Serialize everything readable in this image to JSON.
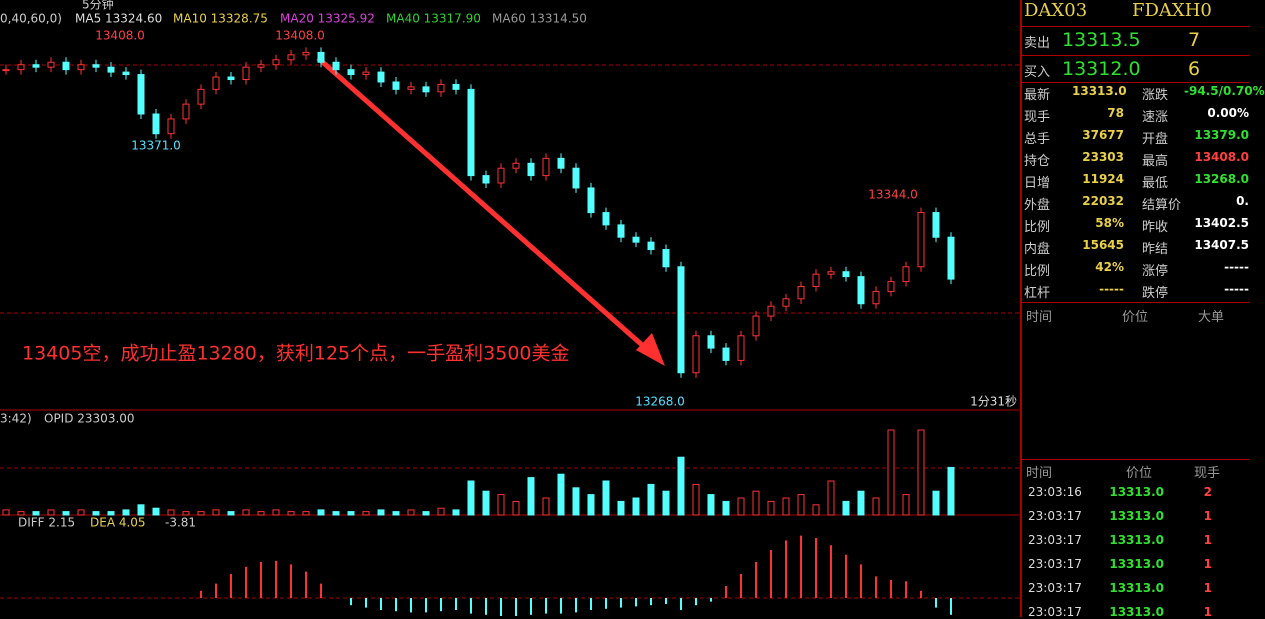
{
  "header": {
    "params": "0,40,60,0)",
    "period": "5分钟",
    "ma": [
      {
        "label": "MA5 13324.60"
      },
      {
        "label": "MA10 13328.75"
      },
      {
        "label": "MA20 13325.92"
      },
      {
        "label": "MA40 13317.90"
      },
      {
        "label": "MA60 13314.50"
      }
    ]
  },
  "price": {
    "high": {
      "value": 13408,
      "label": "13408.0"
    },
    "high2": "13408.0",
    "low_left": "13371.0",
    "low": {
      "value": 13268,
      "label": "13268.0"
    },
    "peak": "13344.0",
    "note": "13405空，成功止盈13280，获利125个点，一手盈利3500美金",
    "timer": "1分31秒",
    "closes": [
      13398,
      13400,
      13399,
      13401,
      13398,
      13400,
      13399,
      13397,
      13396,
      13380,
      13372,
      13378,
      13384,
      13390,
      13395,
      13394,
      13399,
      13400,
      13402,
      13404,
      13405,
      13401,
      13398,
      13396,
      13397,
      13393,
      13390,
      13391,
      13389,
      13392,
      13390,
      13355,
      13352,
      13358,
      13360,
      13355,
      13362,
      13358,
      13350,
      13340,
      13335,
      13330,
      13328,
      13325,
      13318,
      13275,
      13290,
      13285,
      13280,
      13290,
      13298,
      13302,
      13305,
      13310,
      13315,
      13316,
      13314,
      13303,
      13308,
      13312,
      13318,
      13340,
      13330,
      13313
    ]
  },
  "volume": {
    "label1": "3:42)",
    "label2": "OPID 23303.00",
    "values": [
      3,
      2,
      2,
      3,
      2,
      3,
      2,
      2,
      3,
      6,
      4,
      3,
      2,
      2,
      3,
      2,
      3,
      2,
      3,
      2,
      2,
      3,
      2,
      2,
      2,
      3,
      2,
      3,
      2,
      4,
      3,
      20,
      14,
      12,
      8,
      22,
      10,
      24,
      16,
      12,
      20,
      8,
      10,
      18,
      14,
      34,
      18,
      12,
      8,
      10,
      14,
      8,
      10,
      12,
      6,
      20,
      8,
      14,
      10,
      50,
      12,
      50,
      14,
      28
    ]
  },
  "macd": {
    "diff": "DIFF 2.15",
    "dea": "DEA 4.05",
    "hist": "-3.81",
    "values": [
      0,
      0,
      0,
      0,
      0,
      0,
      0,
      0,
      0,
      0,
      0,
      0,
      0,
      0.6,
      1.2,
      2,
      2.6,
      3,
      3.1,
      2.8,
      2.2,
      1.2,
      0,
      -0.6,
      -0.8,
      -1,
      -1.1,
      -1.2,
      -1.2,
      -1.1,
      -1,
      -1.3,
      -1.4,
      -1.5,
      -1.5,
      -1.4,
      -1.3,
      -1.3,
      -1.2,
      -1,
      -0.9,
      -0.8,
      -0.7,
      -0.6,
      -0.5,
      -1,
      -0.6,
      -0.3,
      1,
      2,
      3,
      4,
      4.8,
      5.2,
      5,
      4.4,
      3.6,
      2.8,
      1.8,
      1.5,
      1.4,
      0.6,
      -0.8,
      -1.4
    ]
  },
  "quote": {
    "symbol": "DAX03",
    "code": "FDAXH0",
    "sell": {
      "label": "卖出",
      "price": "13313.5",
      "qty": "7"
    },
    "buy": {
      "label": "买入",
      "price": "13312.0",
      "qty": "6"
    },
    "stats": [
      [
        "最新",
        "13313.0",
        "涨跌",
        "-94.5/0.70%"
      ],
      [
        "现手",
        "78",
        "速涨",
        "0.00%"
      ],
      [
        "总手",
        "37677",
        "开盘",
        "13379.0"
      ],
      [
        "持仓",
        "23303",
        "最高",
        "13408.0"
      ],
      [
        "日增",
        "11924",
        "最低",
        "13268.0"
      ],
      [
        "外盘",
        "22032",
        "结算价",
        "0."
      ],
      [
        "比例",
        "58%",
        "昨收",
        "13402.5"
      ],
      [
        "内盘",
        "15645",
        "昨结",
        "13407.5"
      ],
      [
        "比例",
        "42%",
        "涨停",
        "-----"
      ],
      [
        "杠杆",
        "-----",
        "跌停",
        "-----"
      ]
    ],
    "big_header": [
      "时间",
      "价位",
      "大单"
    ]
  },
  "trades": {
    "header": [
      "时间",
      "价位",
      "现手"
    ],
    "rows": [
      [
        "23:03:16",
        "13313.0",
        "2"
      ],
      [
        "23:03:17",
        "13313.0",
        "1"
      ],
      [
        "23:03:17",
        "13313.0",
        "1"
      ],
      [
        "23:03:17",
        "13313.0",
        "1"
      ],
      [
        "23:03:17",
        "13313.0",
        "1"
      ],
      [
        "23:03:17",
        "13313.0",
        "1"
      ]
    ]
  }
}
